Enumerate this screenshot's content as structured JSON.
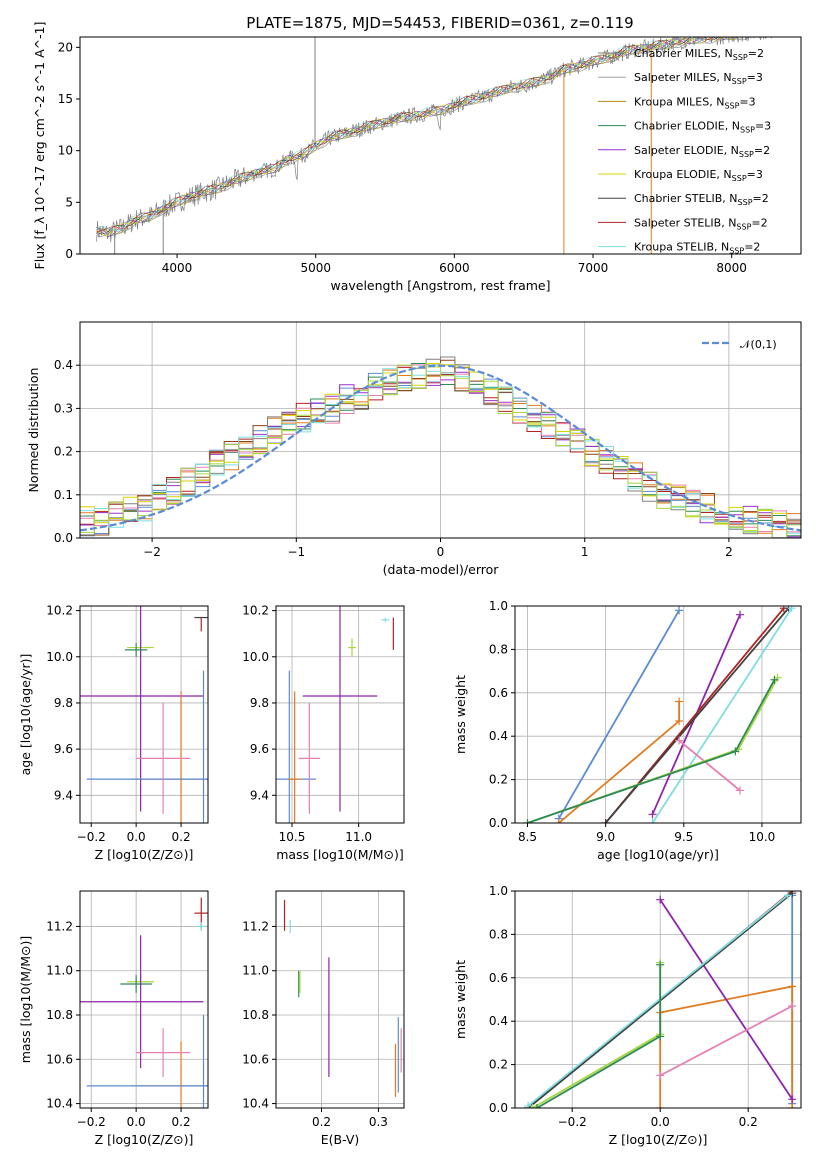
{
  "title": "PLATE=1875, MJD=54453, FIBERID=0361, z=0.119",
  "colors": {
    "gray": "#808080",
    "tan": "#b8860b",
    "green": "#2e8b57",
    "purple": "#9932cc",
    "yellow": "#d4d400",
    "dark": "#404040",
    "red": "#b22222",
    "cyan": "#7fdde0",
    "blue": "#5b8bd6",
    "orange": "#e07b20",
    "pink": "#e87fb0",
    "lime": "#a8d840",
    "olive": "#556b2f",
    "maroon": "#8b1a1a",
    "magenta": "#8e24aa"
  },
  "legend_models": [
    {
      "name": "Chabrier MILES",
      "nssp": "2",
      "color": "#808080"
    },
    {
      "name": "Salpeter MILES",
      "nssp": "3",
      "color": "#a0a0a0"
    },
    {
      "name": "Kroupa MILES",
      "nssp": "3",
      "color": "#b8860b"
    },
    {
      "name": "Chabrier ELODIE",
      "nssp": "3",
      "color": "#2e8b57"
    },
    {
      "name": "Salpeter ELODIE",
      "nssp": "2",
      "color": "#9932cc"
    },
    {
      "name": "Kroupa ELODIE",
      "nssp": "3",
      "color": "#d4d400"
    },
    {
      "name": "Chabrier STELIB",
      "nssp": "2",
      "color": "#404040"
    },
    {
      "name": "Salpeter STELIB",
      "nssp": "2",
      "color": "#b22222"
    },
    {
      "name": "Kroupa STELIB",
      "nssp": "2",
      "color": "#7fdde0"
    }
  ],
  "chart_data": [
    {
      "id": "spectrum",
      "type": "line",
      "xlabel": "wavelength [Angstrom, rest frame]",
      "ylabel": "Flux [f_λ 10^-17 erg cm^-2 s^-1 A^-1]",
      "xlim": [
        3300,
        8500
      ],
      "ylim": [
        0,
        21
      ],
      "xticks": [
        4000,
        5000,
        6000,
        7000,
        8000
      ],
      "yticks": [
        0,
        5,
        10,
        15,
        20
      ],
      "grid": false,
      "legend": "right",
      "continuum": [
        [
          3420,
          2.3
        ],
        [
          3500,
          2.0
        ],
        [
          3600,
          2.5
        ],
        [
          3700,
          3.3
        ],
        [
          3800,
          3.6
        ],
        [
          3900,
          4.4
        ],
        [
          4000,
          5.0
        ],
        [
          4100,
          5.6
        ],
        [
          4200,
          6.0
        ],
        [
          4300,
          6.4
        ],
        [
          4400,
          7.0
        ],
        [
          4500,
          7.5
        ],
        [
          4600,
          8.0
        ],
        [
          4700,
          8.2
        ],
        [
          4800,
          9.2
        ],
        [
          4900,
          9.5
        ],
        [
          5000,
          10.5
        ],
        [
          5100,
          11.2
        ],
        [
          5200,
          11.6
        ],
        [
          5300,
          12.0
        ],
        [
          5400,
          12.4
        ],
        [
          5500,
          12.8
        ],
        [
          5600,
          13.1
        ],
        [
          5700,
          13.4
        ],
        [
          5800,
          13.6
        ],
        [
          5900,
          13.9
        ],
        [
          6000,
          14.4
        ],
        [
          6100,
          14.8
        ],
        [
          6200,
          15.2
        ],
        [
          6300,
          15.6
        ],
        [
          6400,
          16.1
        ],
        [
          6500,
          16.3
        ],
        [
          6600,
          16.7
        ],
        [
          6700,
          17.2
        ],
        [
          6800,
          17.9
        ],
        [
          6900,
          18.2
        ],
        [
          7000,
          18.6
        ],
        [
          7100,
          19.0
        ],
        [
          7200,
          19.4
        ],
        [
          7300,
          19.8
        ],
        [
          7400,
          20.0
        ],
        [
          7500,
          20.2
        ],
        [
          7600,
          20.5
        ],
        [
          7700,
          20.7
        ],
        [
          7800,
          20.9
        ],
        [
          7900,
          21.0
        ],
        [
          8000,
          21.2
        ],
        [
          8100,
          21.3
        ],
        [
          8200,
          21.5
        ],
        [
          8300,
          21.6
        ]
      ]
    },
    {
      "id": "residuals",
      "type": "histogram",
      "xlabel": "(data-model)/error",
      "ylabel": "Normed distribution",
      "xlim": [
        -2.5,
        2.5
      ],
      "ylim": [
        0,
        0.5
      ],
      "xticks": [
        -2,
        -1,
        0,
        1,
        2
      ],
      "yticks": [
        0.0,
        0.1,
        0.2,
        0.3,
        0.4
      ],
      "grid": true,
      "legend_label": "𝒩(0,1)",
      "legend": "top-right",
      "bin_width": 0.1,
      "base": [
        0.04,
        0.04,
        0.05,
        0.06,
        0.07,
        0.09,
        0.11,
        0.13,
        0.15,
        0.17,
        0.19,
        0.21,
        0.23,
        0.25,
        0.26,
        0.28,
        0.29,
        0.3,
        0.32,
        0.33,
        0.35,
        0.36,
        0.37,
        0.38,
        0.38,
        0.39,
        0.37,
        0.36,
        0.34,
        0.32,
        0.3,
        0.28,
        0.26,
        0.24,
        0.22,
        0.2,
        0.18,
        0.16,
        0.14,
        0.12,
        0.1,
        0.09,
        0.08,
        0.07,
        0.06,
        0.05,
        0.04,
        0.04,
        0.03,
        0.03
      ]
    },
    {
      "id": "age-vs-Z",
      "type": "errorbar",
      "xlabel": "Z [log10(Z/Z⊙)]",
      "ylabel": "age [log10(age/yr)]",
      "xlim": [
        -0.25,
        0.32
      ],
      "ylim": [
        9.28,
        10.22
      ],
      "xticks": [
        -0.2,
        0.0,
        0.2
      ],
      "xtick_labels": [
        "−0.2",
        "0.0",
        "0.2"
      ],
      "yticks": [
        9.4,
        9.6,
        9.8,
        10.0,
        10.2
      ],
      "grid": true,
      "points": [
        {
          "x": 0.02,
          "y": 10.04,
          "xerr": 0.06,
          "yerr": 0.04,
          "color": "#a8d840"
        },
        {
          "x": 0.29,
          "y": 10.17,
          "xerr": 0.03,
          "yerr": 0.0,
          "color": "#404040"
        },
        {
          "x": 0.29,
          "y": 10.14,
          "xerr": 0.0,
          "yerr": 0.03,
          "color": "#b22222"
        },
        {
          "x": 0.02,
          "y": 9.83,
          "xerr": 0.28,
          "yerr": 0.5,
          "color": "#8e24aa"
        },
        {
          "x": 0.2,
          "y": 9.47,
          "xerr": 0.22,
          "yerr": 0.38,
          "color": "#e07b20"
        },
        {
          "x": 0.3,
          "y": 9.47,
          "xerr": 0.52,
          "yerr": 0.47,
          "color": "#5b8bd6"
        },
        {
          "x": 0.12,
          "y": 9.56,
          "xerr": 0.12,
          "yerr": 0.24,
          "color": "#e87fb0"
        },
        {
          "x": 0.0,
          "y": 10.03,
          "xerr": 0.05,
          "yerr": 0.03,
          "color": "#2e8b57"
        }
      ]
    },
    {
      "id": "age-vs-mass",
      "type": "errorbar",
      "xlabel": "mass [log10(M/M⊙)]",
      "ylabel": "",
      "xlim": [
        10.38,
        11.34
      ],
      "ylim": [
        9.28,
        10.22
      ],
      "xticks": [
        10.5,
        11.0
      ],
      "yticks": [
        9.4,
        9.6,
        9.8,
        10.0,
        10.2
      ],
      "grid": true,
      "points": [
        {
          "x": 10.95,
          "y": 10.04,
          "xerr": 0.03,
          "yerr": 0.04,
          "color": "#a8d840"
        },
        {
          "x": 11.2,
          "y": 10.16,
          "xerr": 0.03,
          "yerr": 0.01,
          "color": "#7fdde0"
        },
        {
          "x": 11.26,
          "y": 10.1,
          "xerr": 0.0,
          "yerr": 0.07,
          "color": "#b22222"
        },
        {
          "x": 10.86,
          "y": 9.83,
          "xerr": 0.28,
          "yerr": 0.5,
          "color": "#8e24aa"
        },
        {
          "x": 10.48,
          "y": 9.47,
          "xerr": 0.2,
          "yerr": 0.47,
          "color": "#5b8bd6"
        },
        {
          "x": 10.52,
          "y": 9.47,
          "xerr": 0.05,
          "yerr": 0.38,
          "color": "#e07b20"
        },
        {
          "x": 10.63,
          "y": 9.56,
          "xerr": 0.08,
          "yerr": 0.24,
          "color": "#e87fb0"
        }
      ]
    },
    {
      "id": "mass-weight-vs-age",
      "type": "line",
      "xlabel": "age [log10(age/yr)]",
      "ylabel": "mass weight",
      "xlim": [
        8.42,
        10.25
      ],
      "ylim": [
        0,
        1
      ],
      "xticks": [
        8.5,
        9.0,
        9.5,
        10.0
      ],
      "yticks": [
        0.0,
        0.2,
        0.4,
        0.6,
        0.8,
        1.0
      ],
      "grid": true,
      "series": [
        {
          "x": [
            8.7,
            9.47
          ],
          "y": [
            0.02,
            0.98
          ],
          "color": "#5b8bd6"
        },
        {
          "x": [
            8.7,
            9.47,
            9.47
          ],
          "y": [
            0.0,
            0.47,
            0.56
          ],
          "color": "#e07b20"
        },
        {
          "x": [
            9.3,
            9.86
          ],
          "y": [
            0.04,
            0.96
          ],
          "color": "#8e24aa"
        },
        {
          "x": [
            9.0,
            10.14
          ],
          "y": [
            0.0,
            0.99
          ],
          "color": "#b22222"
        },
        {
          "x": [
            9.0,
            10.17
          ],
          "y": [
            0.0,
            0.99
          ],
          "color": "#404040"
        },
        {
          "x": [
            9.3,
            10.19
          ],
          "y": [
            0.0,
            0.99
          ],
          "color": "#7fdde0"
        },
        {
          "x": [
            9.47,
            9.86
          ],
          "y": [
            0.38,
            0.15
          ],
          "color": "#e87fb0"
        },
        {
          "x": [
            8.5,
            9.85,
            10.1
          ],
          "y": [
            0.0,
            0.34,
            0.67
          ],
          "color": "#a8d840"
        },
        {
          "x": [
            8.5,
            9.83,
            10.08
          ],
          "y": [
            0.0,
            0.33,
            0.66
          ],
          "color": "#2e8b57"
        }
      ]
    },
    {
      "id": "mass-vs-Z",
      "type": "errorbar",
      "xlabel": "Z [log10(Z/Z⊙)]",
      "ylabel": "mass [log10(M/M⊙)]",
      "xlim": [
        -0.25,
        0.32
      ],
      "ylim": [
        10.38,
        11.36
      ],
      "xticks": [
        -0.2,
        0.0,
        0.2
      ],
      "xtick_labels": [
        "−0.2",
        "0.0",
        "0.2"
      ],
      "yticks": [
        10.4,
        10.6,
        10.8,
        11.0,
        11.2
      ],
      "grid": true,
      "points": [
        {
          "x": 0.02,
          "y": 10.95,
          "xerr": 0.06,
          "yerr": 0.04,
          "color": "#a8d840"
        },
        {
          "x": 0.0,
          "y": 10.94,
          "xerr": 0.07,
          "yerr": 0.04,
          "color": "#2e8b57"
        },
        {
          "x": 0.29,
          "y": 11.26,
          "xerr": 0.03,
          "yerr": 0.07,
          "color": "#b22222"
        },
        {
          "x": 0.29,
          "y": 11.2,
          "xerr": 0.02,
          "yerr": 0.02,
          "color": "#7fdde0"
        },
        {
          "x": 0.02,
          "y": 10.86,
          "xerr": 0.28,
          "yerr": 0.3,
          "color": "#8e24aa"
        },
        {
          "x": 0.2,
          "y": 10.48,
          "xerr": 0.22,
          "yerr": 0.2,
          "color": "#e07b20"
        },
        {
          "x": 0.3,
          "y": 10.48,
          "xerr": 0.52,
          "yerr": 0.32,
          "color": "#5b8bd6"
        },
        {
          "x": 0.12,
          "y": 10.63,
          "xerr": 0.12,
          "yerr": 0.11,
          "color": "#e87fb0"
        }
      ]
    },
    {
      "id": "mass-vs-EBV",
      "type": "errorbar",
      "xlabel": "E(B-V)",
      "ylabel": "",
      "xlim": [
        0.12,
        0.345
      ],
      "ylim": [
        10.38,
        11.36
      ],
      "xticks": [
        0.2,
        0.3
      ],
      "yticks": [
        10.4,
        10.6,
        10.8,
        11.0,
        11.2
      ],
      "grid": true,
      "points": [
        {
          "x": 0.135,
          "y": 11.25,
          "xerr": 0.0,
          "yerr": 0.07,
          "color": "#b22222"
        },
        {
          "x": 0.145,
          "y": 11.2,
          "xerr": 0.0,
          "yerr": 0.03,
          "color": "#7fdde0"
        },
        {
          "x": 0.16,
          "y": 10.94,
          "xerr": 0.0,
          "yerr": 0.06,
          "color": "#2e8b57"
        },
        {
          "x": 0.162,
          "y": 10.95,
          "xerr": 0.0,
          "yerr": 0.05,
          "color": "#a8d840"
        },
        {
          "x": 0.213,
          "y": 10.79,
          "xerr": 0.0,
          "yerr": 0.27,
          "color": "#8e24aa"
        },
        {
          "x": 0.33,
          "y": 10.55,
          "xerr": 0.0,
          "yerr": 0.12,
          "color": "#e07b20"
        },
        {
          "x": 0.335,
          "y": 10.62,
          "xerr": 0.0,
          "yerr": 0.17,
          "color": "#5b8bd6"
        },
        {
          "x": 0.34,
          "y": 10.64,
          "xerr": 0.0,
          "yerr": 0.1,
          "color": "#e87fb0"
        }
      ]
    },
    {
      "id": "mass-weight-vs-Z",
      "type": "line",
      "xlabel": "Z [log10(Z/Z⊙)]",
      "ylabel": "mass weight",
      "xlim": [
        -0.33,
        0.32
      ],
      "ylim": [
        0,
        1
      ],
      "xticks": [
        -0.2,
        0.0,
        0.2
      ],
      "xtick_labels": [
        "−0.2",
        "0.0",
        "0.2"
      ],
      "yticks": [
        0.0,
        0.2,
        0.4,
        0.6,
        0.8,
        1.0
      ],
      "grid": true,
      "series": [
        {
          "x": [
            0.3,
            0.3
          ],
          "y": [
            0.02,
            0.98
          ],
          "color": "#5b8bd6"
        },
        {
          "x": [
            0.0,
            0.0,
            0.3,
            0.3
          ],
          "y": [
            0.0,
            0.44,
            0.56,
            0.0
          ],
          "color": "#e07b20"
        },
        {
          "x": [
            0.0,
            0.3
          ],
          "y": [
            0.96,
            0.04
          ],
          "color": "#8e24aa"
        },
        {
          "x": [
            -0.3,
            0.3
          ],
          "y": [
            0.0,
            1.0
          ],
          "color": "#b22222"
        },
        {
          "x": [
            -0.3,
            0.3
          ],
          "y": [
            0.0,
            0.99
          ],
          "color": "#404040"
        },
        {
          "x": [
            -0.3,
            0.29
          ],
          "y": [
            0.01,
            0.98
          ],
          "color": "#7fdde0"
        },
        {
          "x": [
            0.0,
            0.3
          ],
          "y": [
            0.15,
            0.47
          ],
          "color": "#e87fb0"
        },
        {
          "x": [
            -0.29,
            0.0,
            0.0
          ],
          "y": [
            0.0,
            0.34,
            0.67
          ],
          "color": "#a8d840"
        },
        {
          "x": [
            -0.28,
            0.0,
            0.0
          ],
          "y": [
            0.0,
            0.33,
            0.66
          ],
          "color": "#2e8b57"
        }
      ]
    }
  ]
}
